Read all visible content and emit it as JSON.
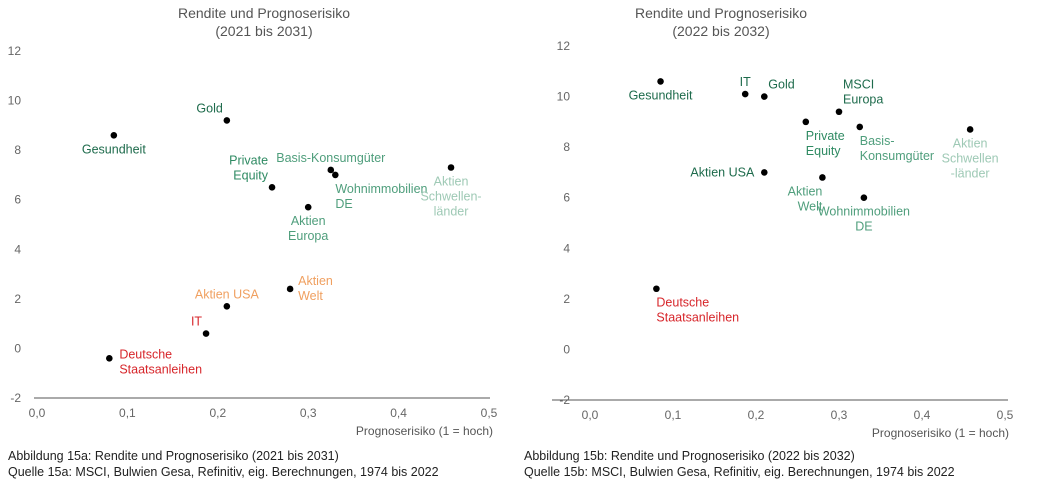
{
  "chart_data": [
    {
      "type": "scatter",
      "title": "Rendite und Prognoserisiko",
      "subtitle": "(2021 bis 2031)",
      "xlabel": "Prognoserisiko (1 = hoch)",
      "ylabel": "",
      "xlim": [
        0,
        0.5
      ],
      "ylim": [
        -2,
        12
      ],
      "x_ticks": [
        "0,0",
        "0,1",
        "0,2",
        "0,3",
        "0,4",
        "0,5"
      ],
      "y_ticks": [
        "12",
        "10",
        "8",
        "6",
        "4",
        "2",
        "0",
        "-2"
      ],
      "grid": false,
      "points": [
        {
          "label": [
            "Gesundheit"
          ],
          "x": 0.085,
          "y": 8.6,
          "color": "#1e6b4c",
          "pos": "below"
        },
        {
          "label": [
            "Gold"
          ],
          "x": 0.21,
          "y": 9.2,
          "color": "#1e6b4c",
          "pos": "above-left"
        },
        {
          "label": [
            "Private",
            "Equity"
          ],
          "x": 0.26,
          "y": 6.5,
          "color": "#2e8a62",
          "pos": "above-left"
        },
        {
          "label": [
            "Basis-Konsumgüter"
          ],
          "x": 0.325,
          "y": 7.2,
          "color": "#4f9e7c",
          "pos": "above"
        },
        {
          "label": [
            "Wohnimmobilien",
            "DE"
          ],
          "x": 0.33,
          "y": 7.0,
          "color": "#4f9e7c",
          "pos": "below-right"
        },
        {
          "label": [
            "Aktien",
            "Europa"
          ],
          "x": 0.3,
          "y": 5.7,
          "color": "#4f9e7c",
          "pos": "below"
        },
        {
          "label": [
            "Aktien",
            "Schwellen-",
            "länder"
          ],
          "x": 0.458,
          "y": 7.3,
          "color": "#9ec9b5",
          "pos": "below"
        },
        {
          "label": [
            "Aktien USA"
          ],
          "x": 0.21,
          "y": 1.7,
          "color": "#f0a060",
          "pos": "above"
        },
        {
          "label": [
            "Aktien",
            "Welt"
          ],
          "x": 0.28,
          "y": 2.4,
          "color": "#f0a060",
          "pos": "right-up"
        },
        {
          "label": [
            "IT"
          ],
          "x": 0.187,
          "y": 0.6,
          "color": "#d7262b",
          "pos": "above-left"
        },
        {
          "label": [
            "Deutsche",
            "Staatsanleihen"
          ],
          "x": 0.08,
          "y": -0.4,
          "color": "#d7262b",
          "pos": "right"
        }
      ]
    },
    {
      "type": "scatter",
      "title": "Rendite und Prognoserisiko",
      "subtitle": "(2022 bis 2032)",
      "xlabel": "Prognoserisiko (1 = hoch)",
      "ylabel": "",
      "xlim": [
        0,
        0.5
      ],
      "ylim": [
        -2,
        12
      ],
      "x_ticks": [
        "0,0",
        "0,1",
        "0,2",
        "0,3",
        "0,4",
        "0,5"
      ],
      "y_ticks": [
        "12",
        "10",
        "8",
        "6",
        "4",
        "2",
        "0",
        "-2"
      ],
      "grid": false,
      "points": [
        {
          "label": [
            "Gesundheit"
          ],
          "x": 0.085,
          "y": 10.6,
          "color": "#1e6b4c",
          "pos": "below"
        },
        {
          "label": [
            "IT"
          ],
          "x": 0.187,
          "y": 10.1,
          "color": "#1e6b4c",
          "pos": "above"
        },
        {
          "label": [
            "Gold"
          ],
          "x": 0.21,
          "y": 10.0,
          "color": "#1e6b4c",
          "pos": "above-right"
        },
        {
          "label": [
            "MSCI",
            "Europa"
          ],
          "x": 0.3,
          "y": 9.4,
          "color": "#1e6b4c",
          "pos": "above-right"
        },
        {
          "label": [
            "Private",
            "Equity"
          ],
          "x": 0.26,
          "y": 9.0,
          "color": "#2e8a62",
          "pos": "below-right"
        },
        {
          "label": [
            "Basis-",
            "Konsumgüter"
          ],
          "x": 0.325,
          "y": 8.8,
          "color": "#4f9e7c",
          "pos": "below-right"
        },
        {
          "label": [
            "Aktien",
            "Schwellen",
            "-länder"
          ],
          "x": 0.458,
          "y": 8.7,
          "color": "#9ec9b5",
          "pos": "below"
        },
        {
          "label": [
            "Aktien USA"
          ],
          "x": 0.21,
          "y": 7.0,
          "color": "#1e6b4c",
          "pos": "left"
        },
        {
          "label": [
            "Aktien",
            "Welt"
          ],
          "x": 0.28,
          "y": 6.8,
          "color": "#4f9e7c",
          "pos": "below-left"
        },
        {
          "label": [
            "Wohnimmobilien",
            "DE"
          ],
          "x": 0.33,
          "y": 6.0,
          "color": "#4f9e7c",
          "pos": "below"
        },
        {
          "label": [
            "Deutsche",
            "Staatsanleihen"
          ],
          "x": 0.08,
          "y": 2.4,
          "color": "#d7262b",
          "pos": "below-right"
        }
      ]
    }
  ],
  "captions": [
    {
      "figure": "Abbildung 15a: Rendite und Prognoserisiko (2021 bis 2031)",
      "source": "Quelle 15a: MSCI, Bulwien Gesa, Refinitiv, eig. Berechnungen, 1974 bis 2022"
    },
    {
      "figure": "Abbildung 15b: Rendite und Prognoserisiko (2022 bis 2032)",
      "source": "Quelle 15b: MSCI, Bulwien Gesa, Refinitiv, eig. Berechnungen, 1974 bis 2022"
    }
  ]
}
